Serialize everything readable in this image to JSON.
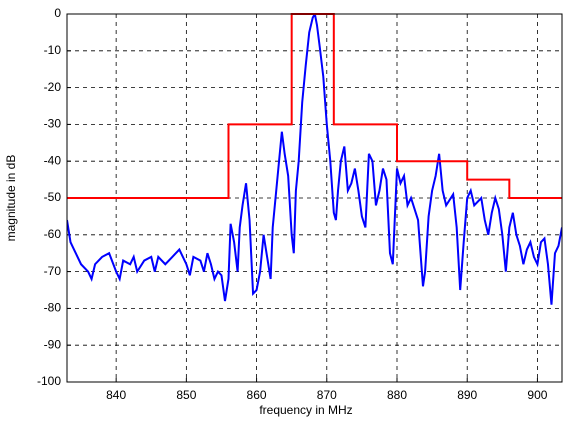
{
  "chart_data": {
    "type": "line",
    "xlabel": "frequency in MHz",
    "ylabel": "magnitude in dB",
    "xlim": [
      833,
      903.5
    ],
    "ylim": [
      -100,
      0
    ],
    "xticks": [
      840,
      850,
      860,
      870,
      880,
      890,
      900
    ],
    "yticks": [
      -100,
      -90,
      -80,
      -70,
      -60,
      -50,
      -40,
      -30,
      -20,
      -10,
      0
    ],
    "grid": true,
    "series": [
      {
        "color": "#0000ff",
        "x": [
          833,
          833.5,
          834,
          835,
          836,
          836.5,
          837,
          838,
          839,
          840,
          840.5,
          841,
          842,
          842.5,
          843,
          844,
          845,
          845.5,
          846,
          847,
          848,
          849,
          850,
          850.5,
          851,
          852,
          852.5,
          853,
          853.5,
          854,
          854.5,
          855,
          855.5,
          856,
          856.3,
          856.8,
          857.3,
          857.6,
          858,
          858.5,
          859,
          859.5,
          860,
          860.5,
          861,
          861.5,
          862,
          862.3,
          862.8,
          863.2,
          863.6,
          864,
          864.5,
          865,
          865.3,
          865.6,
          866,
          866.5,
          867,
          867.5,
          868,
          868.3,
          868.6,
          869,
          869.5,
          870,
          870.5,
          871,
          871.3,
          871.6,
          872,
          872.5,
          873,
          873.5,
          874,
          874.5,
          875,
          875.5,
          876,
          876.5,
          877,
          877.5,
          878,
          878.5,
          879,
          879.4,
          880,
          880.5,
          881,
          881.5,
          882,
          883,
          883.7,
          884,
          884.5,
          885,
          885.5,
          886,
          886.5,
          887,
          888,
          888.5,
          889,
          889.5,
          890,
          890.5,
          891,
          892,
          892.5,
          893,
          893.5,
          894,
          894.5,
          895,
          895.5,
          896,
          896.5,
          897,
          897.5,
          898,
          898.5,
          899,
          899.5,
          900,
          900.5,
          901,
          901.5,
          902,
          902.5,
          903,
          903.5
        ],
        "values": [
          -56,
          -62,
          -64,
          -68,
          -70,
          -72,
          -68,
          -66,
          -65,
          -70,
          -72,
          -67,
          -68,
          -66,
          -70,
          -67,
          -66,
          -70,
          -66,
          -68,
          -66,
          -64,
          -68,
          -71,
          -66,
          -67,
          -70,
          -65,
          -68,
          -72,
          -70,
          -71,
          -78,
          -72,
          -57,
          -62,
          -70,
          -58,
          -52,
          -46,
          -56,
          -76,
          -75,
          -70,
          -60,
          -66,
          -72,
          -58,
          -48,
          -40,
          -32,
          -38,
          -44,
          -60,
          -65,
          -48,
          -40,
          -24,
          -14,
          -5,
          -1,
          0,
          -3,
          -9,
          -17,
          -30,
          -40,
          -54,
          -56,
          -48,
          -40,
          -36,
          -48,
          -46,
          -42,
          -48,
          -55,
          -58,
          -38,
          -40,
          -52,
          -48,
          -42,
          -45,
          -65,
          -68,
          -42,
          -46,
          -44,
          -52,
          -50,
          -56,
          -74,
          -70,
          -55,
          -48,
          -44,
          -38,
          -48,
          -52,
          -49,
          -58,
          -75,
          -62,
          -50,
          -48,
          -52,
          -50,
          -56,
          -60,
          -54,
          -50,
          -53,
          -60,
          -70,
          -58,
          -54,
          -60,
          -63,
          -68,
          -64,
          -62,
          -66,
          -68,
          -62,
          -61,
          -68,
          -79,
          -65,
          -63,
          -58
        ]
      },
      {
        "color": "#ff0000",
        "x": [
          833,
          856,
          856,
          865,
          865,
          871,
          871,
          880,
          880,
          890,
          890,
          896,
          896,
          903.5
        ],
        "values": [
          -50,
          -50,
          -30,
          -30,
          0,
          0,
          -30,
          -30,
          -40,
          -40,
          -45,
          -45,
          -50,
          -50
        ]
      }
    ]
  }
}
